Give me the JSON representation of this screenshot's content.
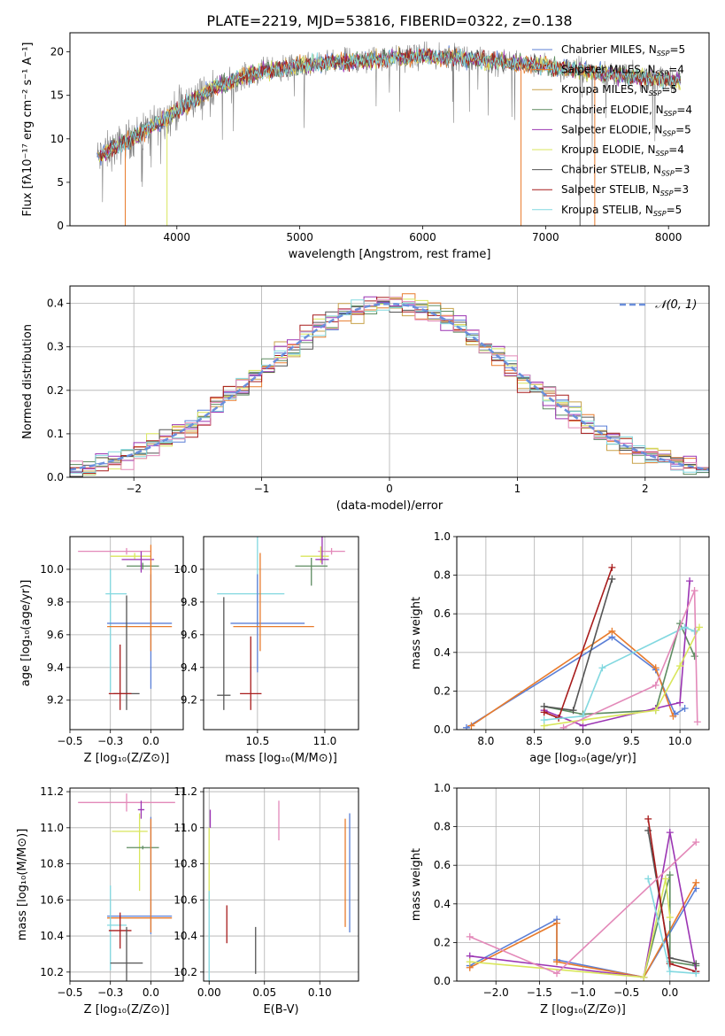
{
  "figure": {
    "title": "PLATE=2219, MJD=53816, FIBERID=0322, z=0.138"
  },
  "colors": {
    "Chabrier_MILES": "#5b7fd6",
    "Salpeter_MILES": "#e87b2c",
    "Kroupa_MILES": "#c8a24a",
    "Chabrier_ELODIE": "#5e8c61",
    "Salpeter_ELODIE": "#9b34b3",
    "Kroupa_ELODIE": "#d9e65c",
    "Chabrier_STELIB": "#555555",
    "Salpeter_STELIB": "#a81c1c",
    "Kroupa_STELIB": "#82d8e0",
    "data_gray": "#808080",
    "pink": "#e389b9",
    "gauss": "#6a8fdc"
  },
  "chart_data": [
    {
      "id": "spectrum",
      "type": "line",
      "xlabel": "wavelength [Angstrom, rest frame]",
      "ylabel": "Flux [fλ10⁻¹⁷ erg cm⁻² s⁻¹ A⁻¹]",
      "xlim": [
        3130,
        8330
      ],
      "ylim": [
        0,
        22.2
      ],
      "xticks": [
        4000,
        5000,
        6000,
        7000,
        8000
      ],
      "yticks": [
        0,
        5,
        10,
        15,
        20
      ],
      "legend_position": "top-right",
      "continuum_knots": [
        [
          3350,
          7.8
        ],
        [
          3500,
          9.0
        ],
        [
          3650,
          10.2
        ],
        [
          3800,
          11.5
        ],
        [
          3950,
          12.8
        ],
        [
          4100,
          14.2
        ],
        [
          4300,
          15.8
        ],
        [
          4500,
          17.0
        ],
        [
          4700,
          17.8
        ],
        [
          4900,
          18.2
        ],
        [
          5100,
          18.6
        ],
        [
          5400,
          18.9
        ],
        [
          5700,
          19.2
        ],
        [
          6000,
          19.5
        ],
        [
          6300,
          19.3
        ],
        [
          6600,
          18.9
        ],
        [
          6900,
          18.5
        ],
        [
          7200,
          18.0
        ],
        [
          7500,
          17.5
        ],
        [
          7800,
          17.0
        ],
        [
          8100,
          16.8
        ]
      ],
      "series": [
        {
          "name": "Chabrier MILES",
          "nssp": "5",
          "color_key": "Chabrier_MILES"
        },
        {
          "name": "Salpeter MILES",
          "nssp": "4",
          "color_key": "Salpeter_MILES"
        },
        {
          "name": "Kroupa MILES",
          "nssp": "5",
          "color_key": "Kroupa_MILES"
        },
        {
          "name": "Chabrier ELODIE",
          "nssp": "4",
          "color_key": "Chabrier_ELODIE"
        },
        {
          "name": "Salpeter ELODIE",
          "nssp": "5",
          "color_key": "Salpeter_ELODIE"
        },
        {
          "name": "Kroupa ELODIE",
          "nssp": "4",
          "color_key": "Kroupa_ELODIE"
        },
        {
          "name": "Chabrier STELIB",
          "nssp": "3",
          "color_key": "Chabrier_STELIB"
        },
        {
          "name": "Salpeter STELIB",
          "nssp": "3",
          "color_key": "Salpeter_STELIB"
        },
        {
          "name": "Kroupa STELIB",
          "nssp": "5",
          "color_key": "Kroupa_STELIB"
        }
      ]
    },
    {
      "id": "residuals",
      "type": "line",
      "xlabel": "(data-model)/error",
      "ylabel": "Normed distribution",
      "xlim": [
        -2.5,
        2.5
      ],
      "ylim": [
        0,
        0.44
      ],
      "xticks": [
        -2,
        -1,
        0,
        1,
        2
      ],
      "yticks": [
        0.0,
        0.1,
        0.2,
        0.3,
        0.4
      ],
      "grid": true,
      "legend_label": "𝒩(0, 1)",
      "gaussian": {
        "mean": 0,
        "sigma": 1
      }
    },
    {
      "id": "age_vs_Z",
      "type": "scatter",
      "xlabel": "Z [log₁₀(Z/Z⊙)]",
      "ylabel": "age  [log₁₀(age/yr)]",
      "xlim": [
        -0.5,
        0.2
      ],
      "ylim": [
        9.02,
        10.2
      ],
      "xticks": [
        -0.5,
        -0.25,
        0.0
      ],
      "yticks": [
        9.2,
        9.4,
        9.6,
        9.8,
        10.0
      ],
      "grid": true,
      "points": [
        {
          "color_key": "pink",
          "x": -0.15,
          "y": 10.11,
          "xerr": [
            0.3,
            0.15
          ],
          "yerr": [
            0.02,
            0.02
          ]
        },
        {
          "color_key": "Kroupa_ELODIE",
          "x": -0.1,
          "y": 10.08,
          "xerr": [
            0.15,
            0.1
          ],
          "yerr": [
            0.02,
            0.02
          ]
        },
        {
          "color_key": "Chabrier_ELODIE",
          "x": -0.05,
          "y": 10.02,
          "xerr": [
            0.1,
            0.1
          ],
          "yerr": [
            0.02,
            0.02
          ]
        },
        {
          "color_key": "Salpeter_ELODIE",
          "x": -0.06,
          "y": 10.06,
          "xerr": [
            0.12,
            0.08
          ],
          "yerr": [
            0.08,
            0.05
          ]
        },
        {
          "color_key": "Kroupa_STELIB",
          "x": -0.25,
          "y": 9.85,
          "xerr": [
            0.03,
            0.1
          ],
          "yerr": [
            0.6,
            0.15
          ]
        },
        {
          "color_key": "Chabrier_MILES",
          "x": 0.0,
          "y": 9.67,
          "xerr": [
            0.27,
            0.13
          ],
          "yerr": [
            0.4,
            0.3
          ]
        },
        {
          "color_key": "Salpeter_MILES",
          "x": 0.0,
          "y": 9.65,
          "xerr": [
            0.27,
            0.13
          ],
          "yerr": [
            0.15,
            0.5
          ]
        },
        {
          "color_key": "Chabrier_STELIB",
          "x": -0.15,
          "y": 9.24,
          "xerr": [
            0.08,
            0.08
          ],
          "yerr": [
            0.1,
            0.6
          ]
        },
        {
          "color_key": "Salpeter_STELIB",
          "x": -0.19,
          "y": 9.24,
          "xerr": [
            0.07,
            0.07
          ],
          "yerr": [
            0.1,
            0.3
          ]
        }
      ]
    },
    {
      "id": "age_vs_mass",
      "type": "scatter",
      "xlabel": "mass [log₁₀(M/M⊙)]",
      "ylabel": "",
      "xlim": [
        10.1,
        11.25
      ],
      "ylim": [
        9.02,
        10.2
      ],
      "xticks": [
        10.5,
        11.0
      ],
      "yticks": [
        9.2,
        9.4,
        9.6,
        9.8,
        10.0
      ],
      "grid": true,
      "points": [
        {
          "color_key": "pink",
          "x": 11.05,
          "y": 10.11,
          "xerr": [
            0.1,
            0.1
          ],
          "yerr": [
            0.02,
            0.02
          ]
        },
        {
          "color_key": "Kroupa_ELODIE",
          "x": 10.97,
          "y": 10.08,
          "xerr": [
            0.15,
            0.06
          ],
          "yerr": [
            0.04,
            0.06
          ]
        },
        {
          "color_key": "Chabrier_ELODIE",
          "x": 10.9,
          "y": 10.02,
          "xerr": [
            0.12,
            0.12
          ],
          "yerr": [
            0.12,
            0.05
          ]
        },
        {
          "color_key": "Salpeter_ELODIE",
          "x": 10.98,
          "y": 10.06,
          "xerr": [
            0.05,
            0.05
          ],
          "yerr": [
            0.03,
            0.15
          ]
        },
        {
          "color_key": "Kroupa_STELIB",
          "x": 10.5,
          "y": 9.85,
          "xerr": [
            0.3,
            0.2
          ],
          "yerr": [
            0.2,
            0.6
          ]
        },
        {
          "color_key": "Chabrier_MILES",
          "x": 10.5,
          "y": 9.67,
          "xerr": [
            0.2,
            0.35
          ],
          "yerr": [
            0.3,
            0.3
          ]
        },
        {
          "color_key": "Salpeter_MILES",
          "x": 10.52,
          "y": 9.65,
          "xerr": [
            0.2,
            0.4
          ],
          "yerr": [
            0.15,
            0.45
          ]
        },
        {
          "color_key": "Chabrier_STELIB",
          "x": 10.25,
          "y": 9.23,
          "xerr": [
            0.05,
            0.05
          ],
          "yerr": [
            0.09,
            0.6
          ]
        },
        {
          "color_key": "Salpeter_STELIB",
          "x": 10.45,
          "y": 9.24,
          "xerr": [
            0.08,
            0.08
          ],
          "yerr": [
            0.1,
            0.35
          ]
        }
      ]
    },
    {
      "id": "mass_weight_vs_age",
      "type": "line",
      "xlabel": "age  [log₁₀(age/yr)]",
      "ylabel": "mass weight",
      "xlim": [
        7.7,
        10.3
      ],
      "ylim": [
        0,
        1
      ],
      "xticks": [
        8.0,
        8.5,
        9.0,
        9.5,
        10.0
      ],
      "yticks": [
        0.0,
        0.2,
        0.4,
        0.6,
        0.8,
        1.0
      ],
      "grid": true,
      "series": [
        {
          "color_key": "Chabrier_MILES",
          "x": [
            7.8,
            9.3,
            9.75,
            9.95,
            10.05
          ],
          "y": [
            0.01,
            0.48,
            0.31,
            0.08,
            0.11
          ]
        },
        {
          "color_key": "Salpeter_MILES",
          "x": [
            7.85,
            9.3,
            9.75,
            9.93
          ],
          "y": [
            0.02,
            0.51,
            0.32,
            0.07
          ]
        },
        {
          "color_key": "Chabrier_ELODIE",
          "x": [
            8.6,
            9.0,
            9.75,
            10.0,
            10.15
          ],
          "y": [
            0.12,
            0.08,
            0.1,
            0.55,
            0.38
          ]
        },
        {
          "color_key": "Salpeter_ELODIE",
          "x": [
            8.6,
            9.0,
            9.75,
            10.0,
            10.1
          ],
          "y": [
            0.1,
            0.02,
            0.11,
            0.14,
            0.77
          ]
        },
        {
          "color_key": "Kroupa_ELODIE",
          "x": [
            8.6,
            9.0,
            9.75,
            10.0,
            10.2
          ],
          "y": [
            0.02,
            0.05,
            0.1,
            0.33,
            0.53
          ]
        },
        {
          "color_key": "Chabrier_STELIB",
          "x": [
            8.6,
            8.9,
            9.3
          ],
          "y": [
            0.12,
            0.1,
            0.78
          ]
        },
        {
          "color_key": "Salpeter_STELIB",
          "x": [
            8.6,
            8.75,
            9.3
          ],
          "y": [
            0.09,
            0.06,
            0.84
          ]
        },
        {
          "color_key": "Kroupa_STELIB",
          "x": [
            8.6,
            9.0,
            9.2,
            10.05,
            10.15
          ],
          "y": [
            0.05,
            0.07,
            0.32,
            0.53,
            0.51
          ]
        },
        {
          "color_key": "pink",
          "x": [
            8.8,
            9.75,
            10.15,
            10.18
          ],
          "y": [
            0.01,
            0.23,
            0.72,
            0.04
          ]
        }
      ]
    },
    {
      "id": "mass_vs_Z",
      "type": "scatter",
      "xlabel": "Z [log₁₀(Z/Z⊙)]",
      "ylabel": "mass [log₁₀(M/M⊙)]",
      "xlim": [
        -0.5,
        0.2
      ],
      "ylim": [
        10.15,
        11.22
      ],
      "xticks": [
        -0.5,
        -0.25,
        0.0
      ],
      "yticks": [
        10.2,
        10.4,
        10.6,
        10.8,
        11.0,
        11.2
      ],
      "grid": true,
      "points": [
        {
          "color_key": "pink",
          "x": -0.15,
          "y": 11.14,
          "xerr": [
            0.3,
            0.3
          ],
          "yerr": [
            0.05,
            0.05
          ]
        },
        {
          "color_key": "Salpeter_ELODIE",
          "x": -0.06,
          "y": 11.1,
          "xerr": [
            0.02,
            0.02
          ],
          "yerr": [
            0.05,
            0.05
          ]
        },
        {
          "color_key": "Kroupa_ELODIE",
          "x": -0.07,
          "y": 10.98,
          "xerr": [
            0.17,
            0.05
          ],
          "yerr": [
            0.33,
            0.1
          ]
        },
        {
          "color_key": "Chabrier_ELODIE",
          "x": -0.05,
          "y": 10.89,
          "xerr": [
            0.1,
            0.1
          ],
          "yerr": [
            0.01,
            0.01
          ]
        },
        {
          "color_key": "Chabrier_MILES",
          "x": 0.0,
          "y": 10.51,
          "xerr": [
            0.27,
            0.13
          ],
          "yerr": [
            0.1,
            0.55
          ]
        },
        {
          "color_key": "Salpeter_MILES",
          "x": 0.0,
          "y": 10.5,
          "xerr": [
            0.27,
            0.13
          ],
          "yerr": [
            0.08,
            0.55
          ]
        },
        {
          "color_key": "Kroupa_STELIB",
          "x": -0.25,
          "y": 10.46,
          "xerr": [
            0.02,
            0.1
          ],
          "yerr": [
            0.25,
            0.22
          ]
        },
        {
          "color_key": "Salpeter_STELIB",
          "x": -0.19,
          "y": 10.43,
          "xerr": [
            0.07,
            0.07
          ],
          "yerr": [
            0.1,
            0.1
          ]
        },
        {
          "color_key": "Chabrier_STELIB",
          "x": -0.15,
          "y": 10.25,
          "xerr": [
            0.1,
            0.1
          ],
          "yerr": [
            0.1,
            0.2
          ]
        }
      ]
    },
    {
      "id": "mass_vs_EBV",
      "type": "scatter",
      "xlabel": "E(B-V)",
      "ylabel": "",
      "xlim": [
        -0.005,
        0.135
      ],
      "ylim": [
        10.15,
        11.22
      ],
      "xticks": [
        0.0,
        0.05,
        0.1
      ],
      "yticks": [
        10.2,
        10.4,
        10.6,
        10.8,
        11.0,
        11.2
      ],
      "grid": true,
      "points": [
        {
          "color_key": "Salpeter_ELODIE",
          "x": 0.001,
          "y": 11.05,
          "yerr": [
            0.05,
            0.05
          ]
        },
        {
          "color_key": "Kroupa_ELODIE",
          "x": 0.0,
          "y": 10.8,
          "yerr": [
            0.25,
            0.2
          ]
        },
        {
          "color_key": "pink",
          "x": 0.063,
          "y": 11.05,
          "yerr": [
            0.12,
            0.1
          ]
        },
        {
          "color_key": "Salpeter_MILES",
          "x": 0.123,
          "y": 10.75,
          "yerr": [
            0.3,
            0.3
          ]
        },
        {
          "color_key": "Chabrier_MILES",
          "x": 0.127,
          "y": 10.75,
          "yerr": [
            0.33,
            0.33
          ]
        },
        {
          "color_key": "Kroupa_STELIB",
          "x": 0.0,
          "y": 10.4,
          "yerr": [
            0.25,
            0.25
          ]
        },
        {
          "color_key": "Salpeter_STELIB",
          "x": 0.016,
          "y": 10.46,
          "yerr": [
            0.1,
            0.11
          ]
        },
        {
          "color_key": "Chabrier_STELIB",
          "x": 0.042,
          "y": 10.32,
          "yerr": [
            0.13,
            0.13
          ]
        }
      ]
    },
    {
      "id": "mass_weight_vs_Z",
      "type": "line",
      "xlabel": "Z [log₁₀(Z/Z⊙)]",
      "ylabel": "mass weight",
      "xlim": [
        -2.45,
        0.45
      ],
      "ylim": [
        0,
        1
      ],
      "xticks": [
        -2.0,
        -1.5,
        -1.0,
        -0.5,
        0.0
      ],
      "yticks": [
        0.0,
        0.2,
        0.4,
        0.6,
        0.8,
        1.0
      ],
      "grid": true,
      "series": [
        {
          "color_key": "Chabrier_MILES",
          "x": [
            -2.3,
            -1.3,
            -1.3,
            -0.3,
            0.3
          ],
          "y": [
            0.08,
            0.32,
            0.11,
            0.02,
            0.48
          ]
        },
        {
          "color_key": "Salpeter_MILES",
          "x": [
            -2.3,
            -1.3,
            -1.3,
            -0.3,
            0.3
          ],
          "y": [
            0.07,
            0.3,
            0.1,
            0.02,
            0.51
          ]
        },
        {
          "color_key": "Chabrier_ELODIE",
          "x": [
            -0.3,
            0.0,
            0.0,
            0.3
          ],
          "y": [
            0.02,
            0.55,
            0.1,
            0.08
          ]
        },
        {
          "color_key": "Salpeter_ELODIE",
          "x": [
            -2.3,
            -0.3,
            0.0,
            0.3
          ],
          "y": [
            0.13,
            0.02,
            0.77,
            0.05
          ]
        },
        {
          "color_key": "Kroupa_ELODIE",
          "x": [
            -2.3,
            -0.3,
            -0.05,
            0.0
          ],
          "y": [
            0.1,
            0.02,
            0.53,
            0.33
          ]
        },
        {
          "color_key": "Chabrier_STELIB",
          "x": [
            -0.25,
            0.0,
            0.3
          ],
          "y": [
            0.78,
            0.12,
            0.09
          ]
        },
        {
          "color_key": "Salpeter_STELIB",
          "x": [
            -0.25,
            0.0,
            0.3
          ],
          "y": [
            0.84,
            0.09,
            0.05
          ]
        },
        {
          "color_key": "Kroupa_STELIB",
          "x": [
            -0.25,
            0.0,
            0.3
          ],
          "y": [
            0.53,
            0.05,
            0.04
          ]
        },
        {
          "color_key": "pink",
          "x": [
            -2.3,
            -1.3,
            0.3
          ],
          "y": [
            0.23,
            0.04,
            0.72
          ]
        }
      ]
    }
  ]
}
